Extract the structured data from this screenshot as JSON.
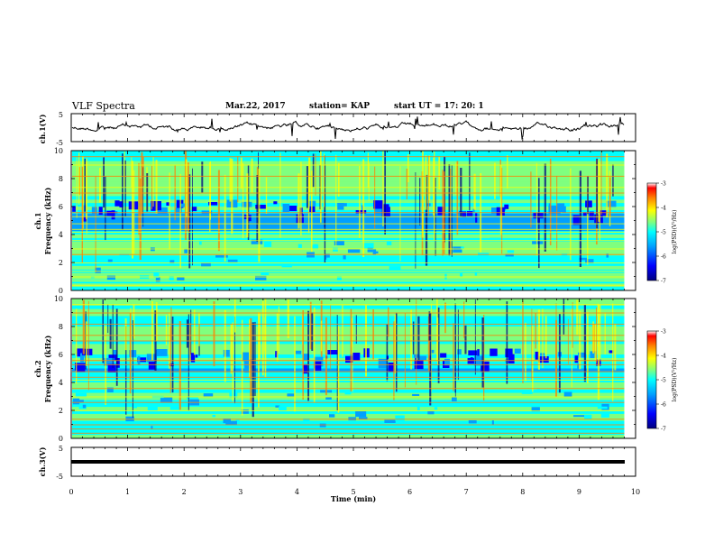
{
  "header": {
    "title": "VLF Spectra",
    "date": "Mar.22, 2017",
    "station": "station= KAP",
    "start": "start  UT =   17: 20: 1"
  },
  "colors": {
    "waveform": "#000000",
    "colormap": [
      "#00007f",
      "#0000ff",
      "#00a0ff",
      "#00ffff",
      "#7fff7f",
      "#ffff00",
      "#ff8000",
      "#ff0000",
      "#ffffff"
    ],
    "bg": "#ffffff"
  },
  "chart_data": [
    {
      "type": "line",
      "panel": "ch1-waveform",
      "ylabel": "ch.1(V)",
      "ylim": [
        -5,
        5
      ],
      "yticks": [
        "5",
        "-5"
      ],
      "xlim": [
        0,
        10
      ],
      "series": [
        {
          "x_range": [
            0,
            9.8
          ],
          "amplitude_approx": 2
        }
      ]
    },
    {
      "type": "heatmap",
      "panel": "ch1-spectrogram",
      "ylabel": "ch.1 Frequency (kHz)",
      "ylim": [
        0,
        10
      ],
      "yticks": [
        "0",
        "2",
        "4",
        "6",
        "8",
        "10"
      ],
      "xlim": [
        0,
        10
      ],
      "colorbar": {
        "label": "log(PSD)(V²/Hz)",
        "range": [
          -7,
          -3
        ],
        "ticks": [
          "-3",
          "-4",
          "-5",
          "-6",
          "-7"
        ]
      }
    },
    {
      "type": "heatmap",
      "panel": "ch2-spectrogram",
      "ylabel": "ch.2 Frequency (kHz)",
      "ylim": [
        0,
        10
      ],
      "yticks": [
        "0",
        "2",
        "4",
        "6",
        "8",
        "10"
      ],
      "xlim": [
        0,
        10
      ],
      "colorbar": {
        "label": "log(PSD)(V²/Hz)",
        "range": [
          -7,
          -3
        ],
        "ticks": [
          "-3",
          "-4",
          "-5",
          "-6",
          "-7"
        ]
      }
    },
    {
      "type": "line",
      "panel": "ch3-waveform",
      "ylabel": "ch.3(V)",
      "ylim": [
        -5,
        5
      ],
      "yticks": [
        "5",
        "-5"
      ],
      "xlim": [
        0,
        10
      ],
      "series": [
        {
          "x_range": [
            0,
            9.8
          ],
          "value": -1.8
        }
      ]
    }
  ],
  "xaxis": {
    "label": "Time  (min)",
    "ticks": [
      "0",
      "1",
      "2",
      "3",
      "4",
      "5",
      "6",
      "7",
      "8",
      "9",
      "10"
    ]
  }
}
